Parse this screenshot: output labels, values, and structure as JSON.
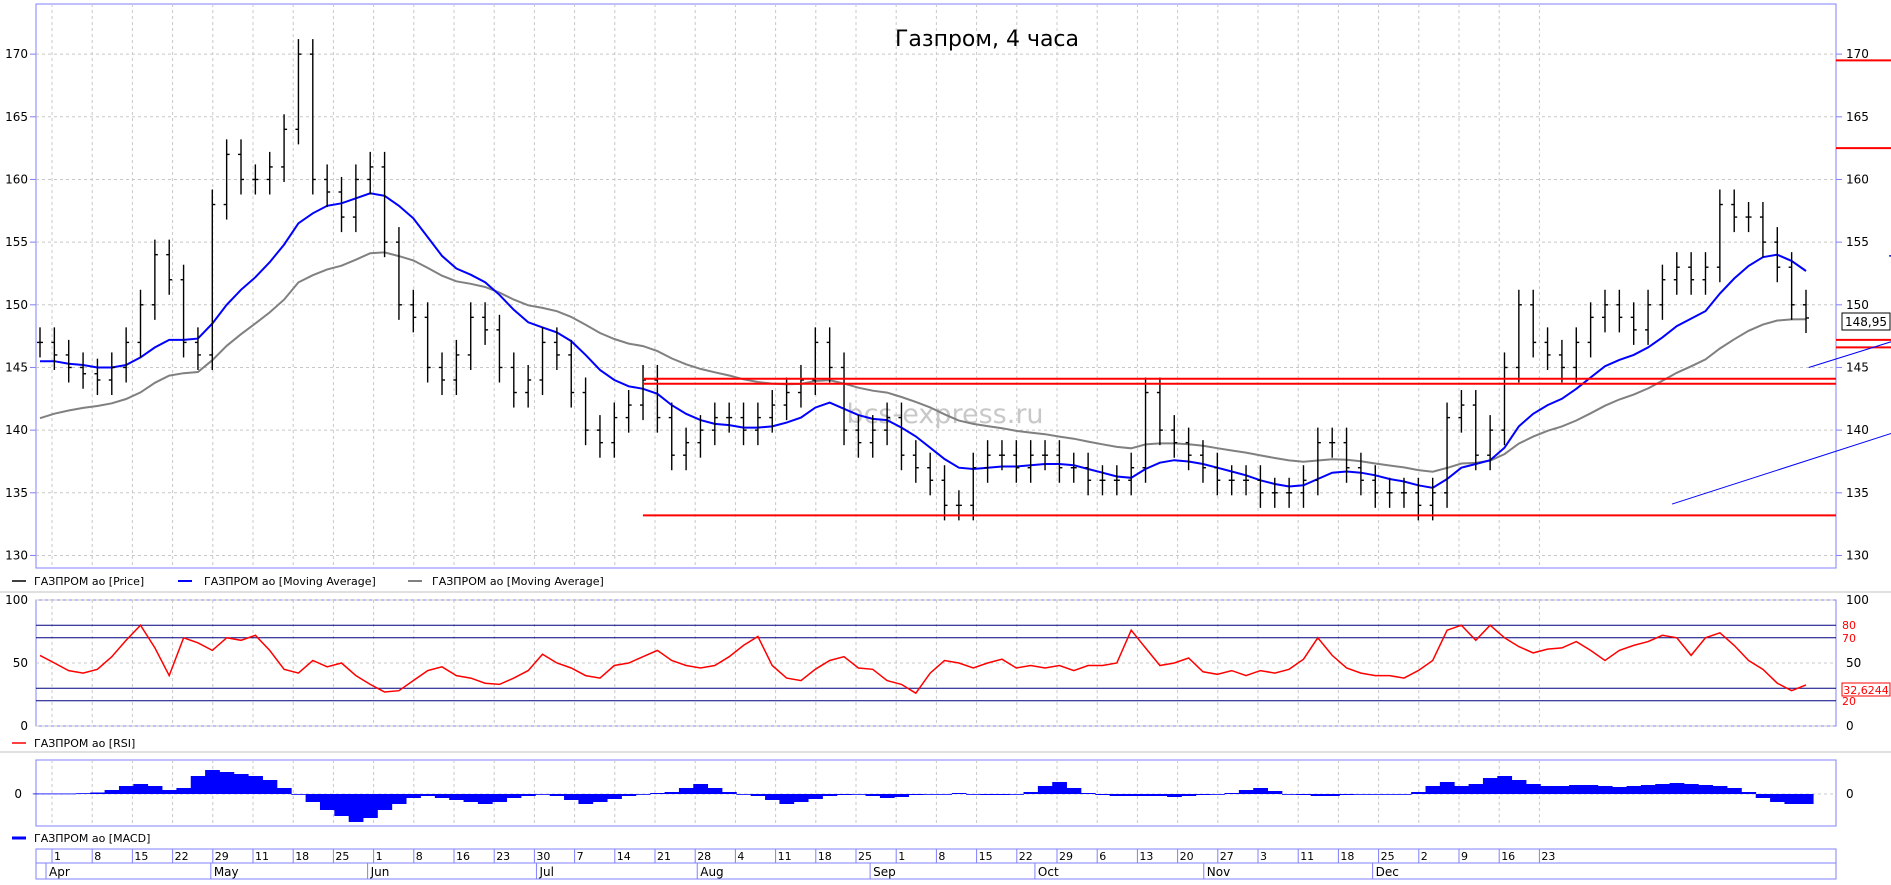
{
  "chart_data": {
    "type": "line",
    "title": "Газпром, 4 часа",
    "watermark": "bcs-express.ru",
    "price_label": "148,95",
    "price_panel": {
      "ylim": [
        129,
        174
      ],
      "yticks": [
        130,
        135,
        140,
        145,
        150,
        155,
        160,
        165,
        170
      ],
      "legend": [
        "ГАЗПРОМ ао [Price]",
        "ГАЗПРОМ ао [Moving Average]",
        "ГАЗПРОМ ао [Moving Average]"
      ],
      "legend_colors": [
        "#000000",
        "#0000ff",
        "#808080"
      ],
      "price": [
        147,
        146,
        145,
        144.5,
        144,
        145,
        147,
        150,
        154,
        152,
        147,
        146,
        158,
        162,
        160,
        160,
        161,
        164,
        170,
        160,
        159,
        157,
        160,
        161,
        155,
        150,
        149,
        145,
        144,
        146,
        149,
        148,
        145,
        143,
        144,
        147,
        146,
        143,
        140,
        139,
        141,
        142,
        144,
        141,
        138,
        139,
        140,
        141,
        141,
        140,
        141,
        142,
        143,
        144,
        147,
        145,
        140,
        139,
        140,
        141,
        138,
        137,
        136,
        134,
        134,
        137,
        138,
        138,
        137,
        138,
        138,
        137,
        137,
        136,
        136,
        136,
        137,
        143,
        140,
        139,
        138,
        137,
        136,
        136,
        136,
        135,
        135,
        135,
        136,
        139,
        139,
        137,
        136,
        135,
        135,
        135,
        134,
        135,
        141,
        142,
        138,
        140,
        145,
        150,
        147,
        146,
        145,
        147,
        149,
        150,
        149,
        148,
        150,
        152,
        153,
        152,
        153,
        158,
        157,
        157,
        155,
        153,
        150,
        148.95
      ],
      "ma_fast": [
        145.5,
        145.5,
        145.3,
        145.2,
        145,
        145,
        145.2,
        145.8,
        146.6,
        147.2,
        147.2,
        147.3,
        148.5,
        150,
        151.2,
        152.2,
        153.4,
        154.8,
        156.5,
        157.3,
        157.9,
        158.1,
        158.5,
        158.9,
        158.7,
        157.9,
        156.9,
        155.4,
        153.9,
        152.9,
        152.4,
        151.8,
        150.8,
        149.6,
        148.6,
        148.2,
        147.8,
        147.1,
        146,
        144.8,
        144,
        143.5,
        143.3,
        142.9,
        142,
        141.3,
        140.8,
        140.5,
        140.4,
        140.2,
        140.2,
        140.3,
        140.6,
        141,
        141.8,
        142.2,
        141.7,
        141.2,
        140.9,
        140.8,
        140.2,
        139.5,
        138.6,
        137.7,
        137,
        136.9,
        137,
        137.1,
        137.1,
        137.2,
        137.3,
        137.3,
        137.2,
        136.9,
        136.6,
        136.3,
        136.2,
        136.9,
        137.4,
        137.6,
        137.5,
        137.3,
        137,
        136.7,
        136.4,
        136,
        135.7,
        135.5,
        135.6,
        136.1,
        136.6,
        136.7,
        136.6,
        136.4,
        136.1,
        135.9,
        135.6,
        135.4,
        136.1,
        137,
        137.3,
        137.6,
        138.6,
        140.3,
        141.3,
        142,
        142.5,
        143.3,
        144.2,
        145.1,
        145.6,
        146,
        146.6,
        147.4,
        148.3,
        148.9,
        149.5,
        150.9,
        152.1,
        153.1,
        153.8,
        154,
        153.5,
        152.7
      ]
    },
    "rsi_panel": {
      "legend": "ГАЗПРОМ ао [RSI]",
      "ylim": [
        0,
        100
      ],
      "yticks": [
        0,
        50,
        100
      ],
      "levels": [
        20,
        30,
        70,
        80
      ],
      "level_labels": [
        "80",
        "70",
        "20"
      ],
      "last_value_label": "32,6244",
      "values": [
        56,
        50,
        44,
        42,
        45,
        55,
        68,
        80,
        62,
        40,
        70,
        66,
        60,
        70,
        68,
        72,
        60,
        45,
        42,
        52,
        47,
        50,
        40,
        33,
        27,
        28,
        36,
        44,
        47,
        40,
        38,
        34,
        33,
        38,
        44,
        57,
        50,
        46,
        40,
        38,
        48,
        50,
        55,
        60,
        52,
        48,
        46,
        48,
        55,
        64,
        71,
        48,
        38,
        36,
        45,
        52,
        55,
        46,
        45,
        36,
        33,
        26,
        42,
        52,
        50,
        46,
        50,
        53,
        46,
        48,
        46,
        48,
        44,
        48,
        48,
        50,
        76,
        62,
        48,
        50,
        54,
        43,
        41,
        44,
        40,
        44,
        42,
        45,
        53,
        70,
        56,
        46,
        42,
        40,
        40,
        38,
        44,
        52,
        76,
        80,
        68,
        80,
        70,
        63,
        58,
        61,
        62,
        67,
        60,
        52,
        60,
        64,
        67,
        72,
        70,
        56,
        70,
        74,
        64,
        52,
        45,
        34,
        28,
        32.6244
      ]
    },
    "macd_panel": {
      "legend": "ГАЗПРОМ ао [MACD]",
      "yticks": [
        0
      ],
      "values": [
        0.5,
        0.5,
        0.5,
        0.8,
        1.5,
        4,
        8,
        10,
        8,
        4,
        6,
        18,
        24,
        22,
        20,
        18,
        14,
        6,
        0,
        -8,
        -16,
        -22,
        -28,
        -24,
        -16,
        -10,
        -4,
        -2,
        -4,
        -6,
        -8,
        -10,
        -8,
        -4,
        -2,
        0,
        -2,
        -6,
        -10,
        -8,
        -5,
        -2,
        0,
        1,
        2,
        6,
        10,
        6,
        2,
        0,
        -2,
        -6,
        -10,
        -8,
        -5,
        -2,
        -1,
        0,
        -2,
        -4,
        -3,
        -1,
        0,
        0,
        1,
        0,
        -1,
        -1,
        0,
        2,
        8,
        12,
        6,
        1,
        -1,
        -2,
        -2,
        -2,
        -2,
        -3,
        -2,
        -1,
        0,
        1,
        4,
        6,
        3,
        0,
        -1,
        -2,
        -2,
        -1,
        0,
        0,
        0,
        0,
        2,
        8,
        12,
        8,
        10,
        16,
        18,
        14,
        10,
        8,
        8,
        9,
        9,
        8,
        7,
        8,
        9,
        10,
        11,
        10,
        9,
        8,
        6,
        2,
        -4,
        -8,
        -10,
        -10
      ]
    },
    "date_axis": {
      "days": [
        "1",
        "8",
        "15",
        "22",
        "29",
        "11",
        "18",
        "25",
        "1",
        "8",
        "16",
        "23",
        "30",
        "7",
        "14",
        "21",
        "28",
        "4",
        "11",
        "18",
        "25",
        "1",
        "8",
        "15",
        "22",
        "29",
        "6",
        "13",
        "20",
        "27",
        "3",
        "11",
        "18",
        "25",
        "2",
        "9",
        "16",
        "23"
      ],
      "months": [
        "Apr",
        "May",
        "Jun",
        "Jul",
        "Aug",
        "Sep",
        "Oct",
        "Nov",
        "Dec"
      ]
    },
    "horizontal_levels": [
      {
        "y": 169.5,
        "from": 48.5,
        "color": "#ff0000"
      },
      {
        "y": 162.5,
        "from": 48.5,
        "color": "#ff0000"
      },
      {
        "y": 147.2,
        "from": 48.3,
        "color": "#ff0000"
      },
      {
        "y": 146.6,
        "from": 48.3,
        "color": "#ff0000"
      },
      {
        "y": 144.1,
        "from": 14.7,
        "color": "#ff0000"
      },
      {
        "y": 143.7,
        "from": 14.7,
        "color": "#ff0000"
      },
      {
        "y": 133.2,
        "from": 14.7,
        "color": "#ff0000"
      }
    ],
    "resistance_segment": {
      "y": 153.9,
      "from": 45.7,
      "to": 51.5,
      "color": "#0000ff"
    },
    "trend_lines": [
      {
        "x1": 40.3,
        "y1": 134.1,
        "x2": 52,
        "y2": 146.2,
        "color": "#0000ff"
      },
      {
        "x1": 43.7,
        "y1": 145,
        "x2": 52,
        "y2": 153.3,
        "color": "#0000ff"
      }
    ]
  }
}
